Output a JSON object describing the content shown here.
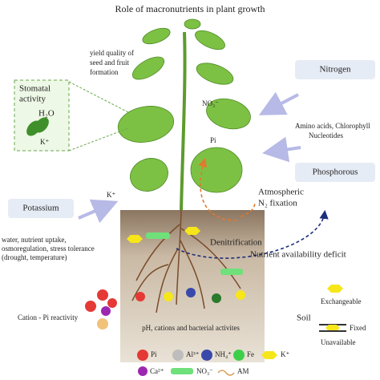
{
  "title": "Role of macronutrients in plant growth",
  "plant": {
    "yield_note": [
      "yield quality of",
      "seed and fruit",
      "formation"
    ],
    "nitrate": "NO₃⁻",
    "phosphate": "Pi",
    "potassium_ion": "K⁺"
  },
  "stomata_box": {
    "title": [
      "Stomatal",
      "activity"
    ],
    "water": "H₂O",
    "ion": "K⁺"
  },
  "nitrogen": {
    "label": "Nitrogen",
    "roles": [
      "Amino acids, Chlorophyll",
      "Nucleotides"
    ]
  },
  "phosphorous": {
    "label": "Phosphorous"
  },
  "potassium": {
    "label": "Potassium",
    "roles": [
      "water, nutrient uptake,",
      "osmoregulation, stress tolerance",
      "(drought, temperature)"
    ]
  },
  "processes": {
    "fixation": [
      "Atmospheric",
      "N₂ fixation"
    ],
    "denitrification": "Denitrification",
    "deficit": "Nutrient availability deficit"
  },
  "soil": {
    "label": "Soil",
    "factors": "pH, cations and bacterial activites",
    "cation_pi": "Cation - Pi reactivity"
  },
  "states": {
    "exchangeable": "Exchangeable",
    "fixed": "Fixed",
    "unavailable": "Unavailable"
  },
  "legend": [
    "Pi",
    "Al³⁺",
    "NH₄⁺",
    "Fe",
    "K⁺",
    "Ca²⁺",
    "NO₃⁻",
    "AM"
  ]
}
